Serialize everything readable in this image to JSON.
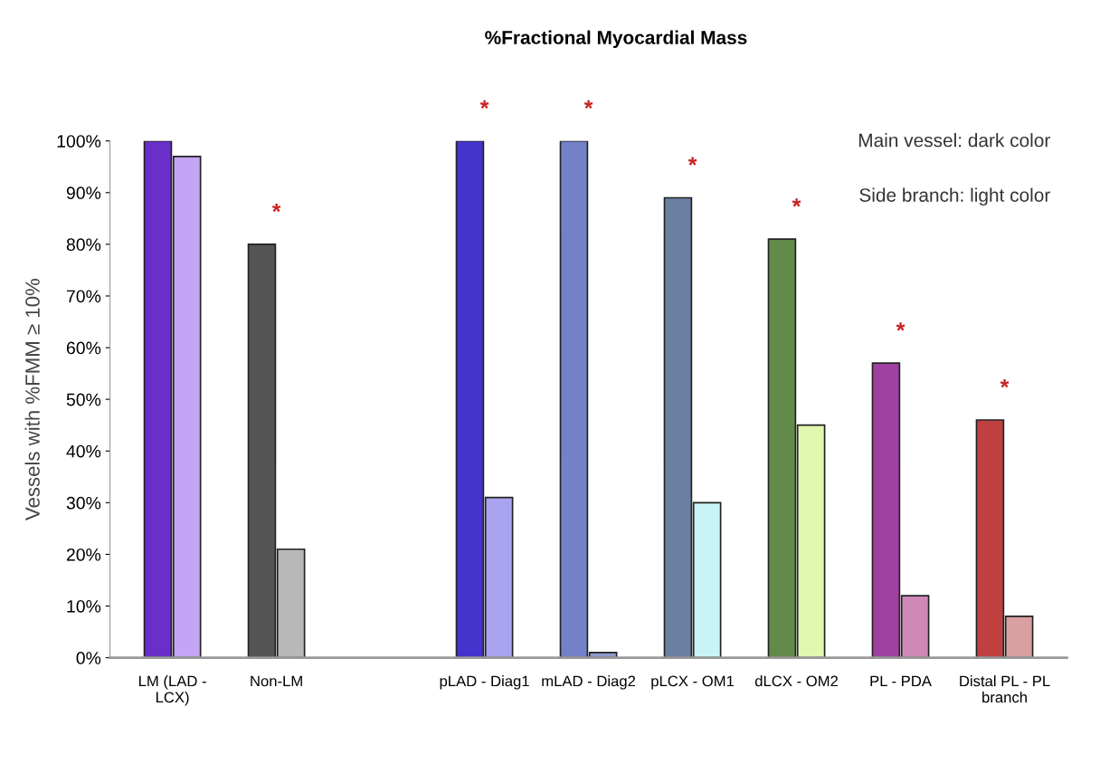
{
  "chart_data": {
    "type": "bar",
    "title": "%Fractional Myocardial Mass",
    "ylabel": "Vessels with %FMM ≥ 10%",
    "categories": [
      "LM (LAD -\nLCX)",
      "Non-LM",
      null,
      "pLAD - Diag1",
      "mLAD - Diag2",
      "pLCX - OM1",
      "dLCX - OM2",
      "PL - PDA",
      "Distal PL - PL\nbranch"
    ],
    "series": [
      {
        "colors": [
          "#6a2fc8",
          "#555555",
          "#888888",
          "#4433cc",
          "#7480c8",
          "#6b80a0",
          "#628a48",
          "#a040a0",
          "#c04040"
        ],
        "values": [
          100,
          80,
          null,
          100,
          100,
          89,
          81,
          57,
          46
        ]
      },
      {
        "colors": [
          "#c4a4f4",
          "#b8b8b8",
          "#cccccc",
          "#aaa4f0",
          "#9098d0",
          "#c8f4f8",
          "#e0f8b0",
          "#d088b8",
          "#d8a0a0"
        ],
        "values": [
          97,
          21,
          null,
          31,
          1,
          30,
          45,
          12,
          8
        ]
      }
    ],
    "ylim": [
      0,
      100
    ],
    "yticks": [
      {
        "value": 0,
        "label": "0%"
      },
      {
        "value": 10,
        "label": "10%"
      },
      {
        "value": 20,
        "label": "20%"
      },
      {
        "value": 30,
        "label": "30%"
      },
      {
        "value": 40,
        "label": "40%"
      },
      {
        "value": 50,
        "label": "50%"
      },
      {
        "value": 60,
        "label": "60%"
      },
      {
        "value": 70,
        "label": "70%"
      },
      {
        "value": 80,
        "label": "80%"
      },
      {
        "value": 90,
        "label": "90%"
      },
      {
        "value": 100,
        "label": "100%"
      }
    ],
    "annotations": [
      "Main vessel: dark color",
      "Side branch: light color",
      "*",
      "*",
      "*",
      "*",
      "*",
      "*",
      "*"
    ],
    "grid": false,
    "legend": false
  }
}
